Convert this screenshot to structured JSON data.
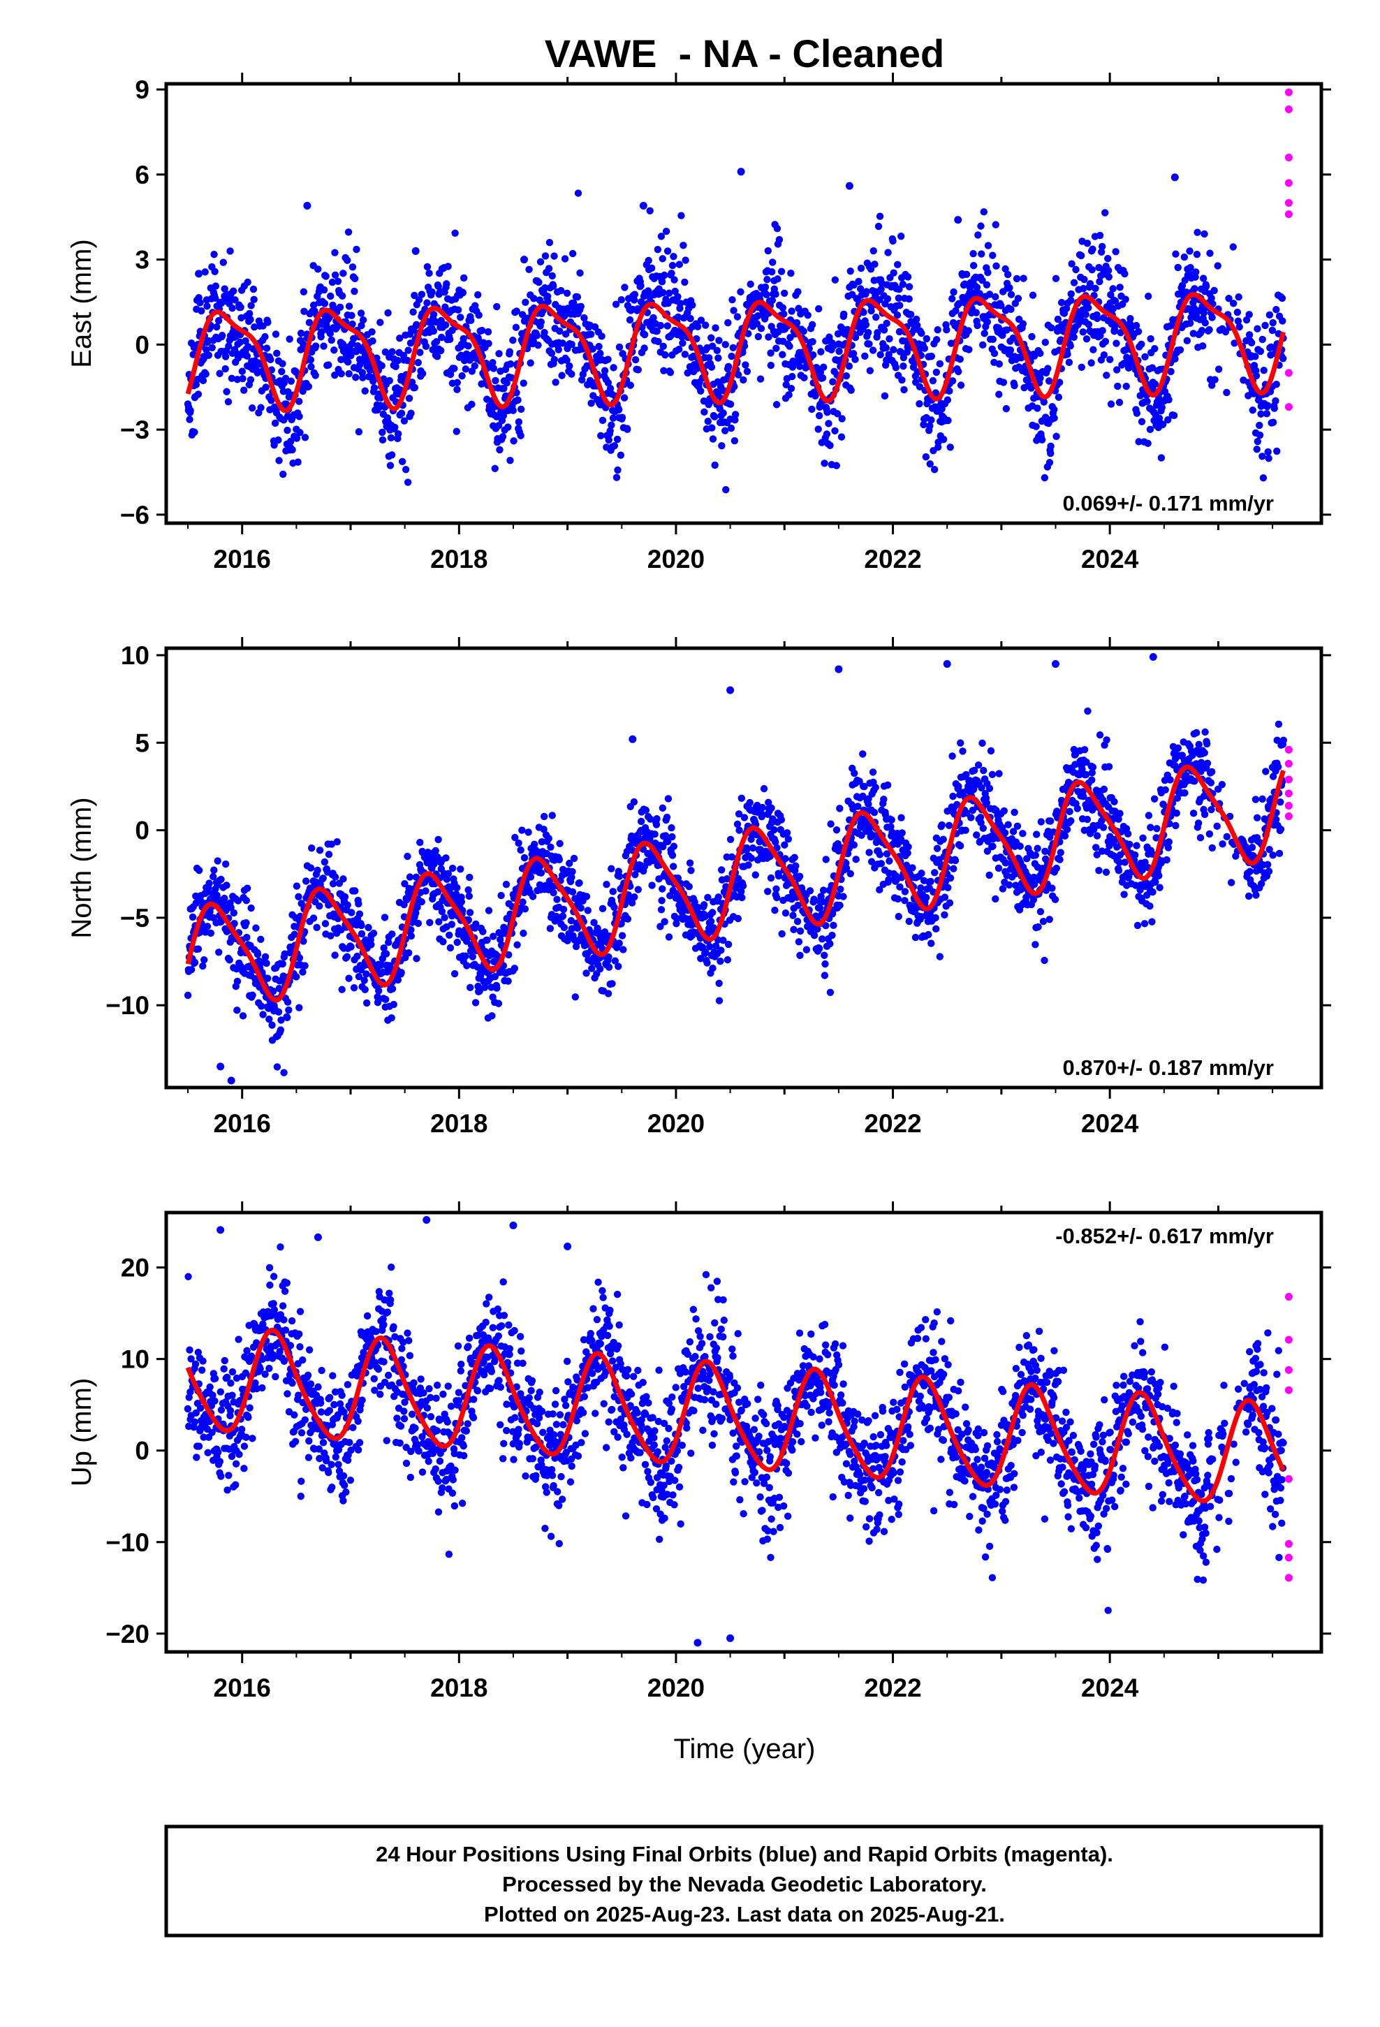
{
  "chart_data": [
    {
      "type": "scatter",
      "title": "VAWE  - NA - Cleaned",
      "xlabel": "",
      "ylabel": "East (mm)",
      "xlim": [
        2015.3,
        2025.95
      ],
      "ylim": [
        -6.3,
        9.2
      ],
      "xticks": [
        2016,
        2018,
        2020,
        2022,
        2024
      ],
      "xtick_labels": [
        "2016",
        "2018",
        "2020",
        "2022",
        "2024"
      ],
      "yticks": [
        -6,
        -3,
        0,
        3,
        6,
        9
      ],
      "ytick_labels": [
        "−6",
        "−3",
        "0",
        "3",
        "6",
        "9"
      ],
      "rate_annotation": "0.069+/- 0.171 mm/yr",
      "colors": {
        "final": "#0000ff",
        "rapid": "#ff00ff",
        "fit": "#ff0000"
      },
      "model": {
        "start": 2015.5,
        "end": 2025.6,
        "offset": 0.0,
        "rate": 0.069,
        "annual_amp": 1.6,
        "annual_phase": 0.62,
        "semi_amp": 0.5,
        "semi_phase": 0.55,
        "scatter": 1.2,
        "seed": 11
      },
      "series": [
        {
          "name": "Final Orbits",
          "color": "#0000ff",
          "x": [
            2015.6,
            2016.6,
            2017.6,
            2018.6,
            2019.7,
            2020.6,
            2021.6,
            2022.6,
            2024.6
          ],
          "y": [
            2.5,
            4.9,
            3.3,
            3.0,
            4.9,
            6.1,
            5.6,
            4.4,
            5.9
          ]
        },
        {
          "name": "Rapid Orbits",
          "color": "#ff00ff",
          "x": [
            2025.65,
            2025.65,
            2025.65,
            2025.65,
            2025.65,
            2025.65,
            2025.65,
            2025.65
          ],
          "y": [
            8.9,
            8.3,
            6.6,
            5.7,
            5.0,
            4.6,
            -1.0,
            -2.2
          ]
        }
      ]
    },
    {
      "type": "scatter",
      "title": "",
      "xlabel": "",
      "ylabel": "North (mm)",
      "xlim": [
        2015.3,
        2025.95
      ],
      "ylim": [
        -14.7,
        10.4
      ],
      "xticks": [
        2016,
        2018,
        2020,
        2022,
        2024
      ],
      "xtick_labels": [
        "2016",
        "2018",
        "2020",
        "2022",
        "2024"
      ],
      "yticks": [
        -10,
        -5,
        0,
        5,
        10
      ],
      "ytick_labels": [
        "−10",
        "−5",
        "0",
        "5",
        "10"
      ],
      "rate_annotation": "0.870+/- 0.187 mm/yr",
      "colors": {
        "final": "#0000ff",
        "rapid": "#ff00ff",
        "fit": "#ff0000"
      },
      "model": {
        "start": 2015.5,
        "end": 2025.6,
        "offset": -2.9,
        "rate": 0.87,
        "annual_amp": 2.8,
        "annual_phase": 0.52,
        "semi_amp": 0.6,
        "semi_phase": 0.5,
        "scatter": 1.5,
        "seed": 23
      },
      "series": [
        {
          "name": "Final Orbits",
          "color": "#0000ff",
          "x": [
            2015.8,
            2015.9,
            2019.6,
            2020.5,
            2021.5,
            2022.5,
            2023.5,
            2024.4
          ],
          "y": [
            -13.5,
            -14.3,
            5.2,
            8.0,
            9.2,
            9.5,
            9.5,
            9.9
          ]
        },
        {
          "name": "Rapid Orbits",
          "color": "#ff00ff",
          "x": [
            2025.65,
            2025.65,
            2025.65,
            2025.65,
            2025.65,
            2025.65
          ],
          "y": [
            4.6,
            3.8,
            2.9,
            2.1,
            1.4,
            0.8
          ]
        }
      ]
    },
    {
      "type": "scatter",
      "title": "",
      "xlabel": "Time (year)",
      "ylabel": "Up (mm)",
      "xlim": [
        2015.3,
        2025.95
      ],
      "ylim": [
        -22,
        26
      ],
      "xticks": [
        2016,
        2018,
        2020,
        2022,
        2024
      ],
      "xtick_labels": [
        "2016",
        "2018",
        "2020",
        "2022",
        "2024"
      ],
      "yticks": [
        -20,
        -10,
        0,
        10,
        20
      ],
      "ytick_labels": [
        "−20",
        "−10",
        "0",
        "10",
        "20"
      ],
      "rate_annotation": "-0.852+/- 0.617 mm/yr",
      "colors": {
        "final": "#0000ff",
        "rapid": "#ff00ff",
        "fit": "#ff0000"
      },
      "model": {
        "start": 2015.5,
        "end": 2025.6,
        "offset": 3.5,
        "rate": -0.852,
        "annual_amp": 5.5,
        "annual_phase": 0.06,
        "semi_amp": 0.8,
        "semi_phase": 0.1,
        "scatter": 3.8,
        "seed": 37
      },
      "series": [
        {
          "name": "Final Orbits",
          "color": "#0000ff",
          "x": [
            2015.8,
            2016.7,
            2017.7,
            2018.5,
            2019.0,
            2020.2,
            2020.5
          ],
          "y": [
            24.1,
            23.3,
            25.2,
            24.6,
            22.3,
            -21.0,
            -20.5
          ]
        },
        {
          "name": "Rapid Orbits",
          "color": "#ff00ff",
          "x": [
            2025.65,
            2025.65,
            2025.65,
            2025.65,
            2025.65,
            2025.65,
            2025.65,
            2025.65
          ],
          "y": [
            16.8,
            12.1,
            8.8,
            6.6,
            -3.1,
            -10.2,
            -11.7,
            -13.9
          ]
        }
      ]
    }
  ],
  "footer": {
    "line1": "24 Hour Positions Using Final Orbits (blue) and Rapid Orbits (magenta).",
    "line2": "Processed by the Nevada Geodetic Laboratory.",
    "line3": "Plotted on 2025-Aug-23. Last data on 2025-Aug-21."
  }
}
